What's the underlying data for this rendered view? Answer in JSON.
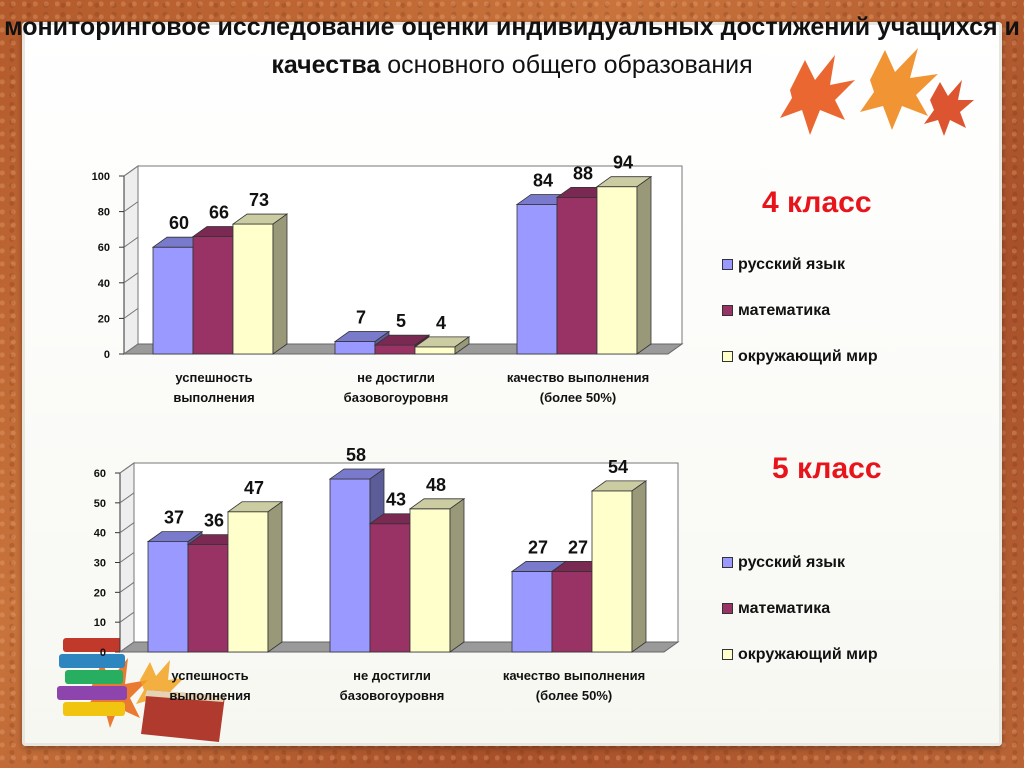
{
  "title": {
    "bold_part": "мониторинговое исследование оценки индивидуальных достижений учащихся и качества",
    "normal_part": "основного общего образования"
  },
  "colors": {
    "series": [
      "#9999ff",
      "#993366",
      "#ffffcc"
    ],
    "accent": "#e8141c"
  },
  "legend": {
    "items": [
      {
        "label": "русский язык",
        "color": "#9999ff"
      },
      {
        "label": "математика",
        "color": "#993366"
      },
      {
        "label": "окружающий мир",
        "color": "#ffffcc"
      }
    ]
  },
  "chart_data": [
    {
      "type": "bar",
      "title": "4 класс",
      "categories": [
        "успешность выполнения",
        "не достигли базовогоуровня",
        "качество выполнения (более 50%)"
      ],
      "category_lines": [
        [
          "успешность",
          "выполнения"
        ],
        [
          "не достигли",
          "базовогоуровня"
        ],
        [
          "качество выполнения",
          "(более 50%)"
        ]
      ],
      "series": [
        {
          "name": "русский язык",
          "values": [
            60,
            7,
            84
          ]
        },
        {
          "name": "математика",
          "values": [
            66,
            5,
            88
          ]
        },
        {
          "name": "окружающий мир",
          "values": [
            73,
            4,
            94
          ]
        }
      ],
      "ylim": [
        0,
        100
      ],
      "yticks": [
        0,
        20,
        40,
        60,
        80,
        100
      ],
      "grid": false,
      "three_d": true,
      "legend_position": "right"
    },
    {
      "type": "bar",
      "title": "5 класс",
      "categories": [
        "успешность выполнения",
        "не достигли базовогоуровня",
        "качество выполнения (более 50%)"
      ],
      "category_lines": [
        [
          "успешность",
          "выполнения"
        ],
        [
          "не достигли",
          "базовогоуровня"
        ],
        [
          "качество выполнения",
          "(более 50%)"
        ]
      ],
      "series": [
        {
          "name": "русский язык",
          "values": [
            37,
            58,
            27
          ]
        },
        {
          "name": "математика",
          "values": [
            36,
            43,
            27
          ]
        },
        {
          "name": "окружающий мир",
          "values": [
            47,
            48,
            54
          ]
        }
      ],
      "ylim": [
        0,
        60
      ],
      "yticks": [
        0,
        10,
        20,
        30,
        40,
        50,
        60
      ],
      "grid": false,
      "three_d": true,
      "legend_position": "right"
    }
  ]
}
